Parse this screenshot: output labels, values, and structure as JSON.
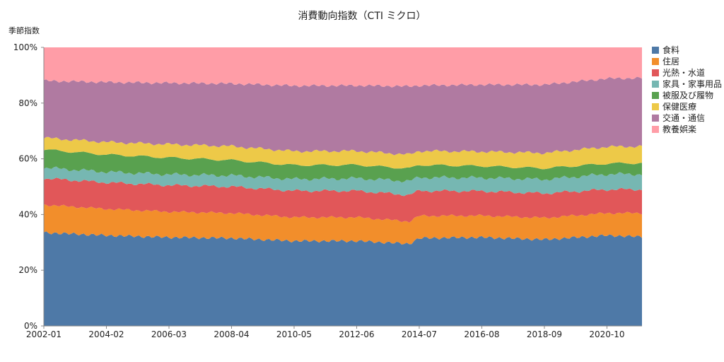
{
  "chart_data": {
    "type": "area",
    "stacked": true,
    "normalized": true,
    "title": "消費動向指数（CTI ミクロ）",
    "ylabel": "季節指数",
    "xlabel": "",
    "ylim": [
      0,
      100
    ],
    "y_ticks": [
      "0%",
      "20%",
      "40%",
      "60%",
      "80%",
      "100%"
    ],
    "x_ticks": [
      "2002-01",
      "2004-02",
      "2006-03",
      "2008-04",
      "2010-05",
      "2012-06",
      "2014-07",
      "2016-08",
      "2018-09",
      "2020-10"
    ],
    "x_range": [
      "2002-01",
      "2021-12"
    ],
    "legend_position": "right",
    "series": [
      {
        "name": "食料",
        "color": "#4e79a7",
        "x": [
          "2002-01",
          "2004-02",
          "2006-03",
          "2008-04",
          "2010-05",
          "2012-06",
          "2014-03",
          "2014-07",
          "2016-08",
          "2018-09",
          "2020-10",
          "2021-12"
        ],
        "values": [
          33.5,
          32.5,
          31.8,
          31.5,
          30.5,
          30.5,
          29.5,
          31.5,
          31.8,
          31.0,
          32.5,
          32.0
        ]
      },
      {
        "name": "住居",
        "color": "#f28e2b",
        "x": [
          "2002-01",
          "2004-02",
          "2006-03",
          "2008-04",
          "2010-05",
          "2012-06",
          "2014-03",
          "2014-07",
          "2016-08",
          "2018-09",
          "2020-10",
          "2021-12"
        ],
        "values": [
          10.0,
          9.5,
          9.2,
          9.0,
          8.5,
          8.5,
          8.0,
          8.0,
          7.8,
          7.8,
          8.0,
          8.5
        ]
      },
      {
        "name": "光熱・水道",
        "color": "#e15759",
        "x": [
          "2002-01",
          "2004-02",
          "2006-03",
          "2008-04",
          "2010-05",
          "2012-06",
          "2014-03",
          "2014-07",
          "2016-08",
          "2018-09",
          "2020-10",
          "2021-12"
        ],
        "values": [
          9.5,
          9.5,
          9.5,
          9.5,
          9.5,
          9.5,
          9.5,
          9.0,
          8.8,
          8.8,
          8.5,
          8.5
        ]
      },
      {
        "name": "家具・家事用品",
        "color": "#76b7b2",
        "x": [
          "2002-01",
          "2004-02",
          "2006-03",
          "2008-04",
          "2010-05",
          "2012-06",
          "2014-03",
          "2014-07",
          "2016-08",
          "2018-09",
          "2020-10",
          "2021-12"
        ],
        "values": [
          3.8,
          3.8,
          3.9,
          4.0,
          4.2,
          4.5,
          5.0,
          4.8,
          4.8,
          5.0,
          5.5,
          5.5
        ]
      },
      {
        "name": "被服及び履物",
        "color": "#59a14f",
        "x": [
          "2002-01",
          "2004-02",
          "2006-03",
          "2008-04",
          "2010-05",
          "2012-06",
          "2014-03",
          "2014-07",
          "2016-08",
          "2018-09",
          "2020-10",
          "2021-12"
        ],
        "values": [
          6.5,
          6.2,
          6.0,
          5.5,
          5.0,
          4.8,
          4.5,
          4.5,
          4.2,
          4.0,
          3.8,
          4.0
        ]
      },
      {
        "name": "保健医療",
        "color": "#edc948",
        "x": [
          "2002-01",
          "2004-02",
          "2006-03",
          "2008-04",
          "2010-05",
          "2012-06",
          "2014-03",
          "2014-07",
          "2016-08",
          "2018-09",
          "2020-10",
          "2021-12"
        ],
        "values": [
          4.2,
          4.5,
          4.8,
          5.0,
          5.0,
          5.0,
          5.0,
          5.0,
          5.2,
          5.5,
          6.0,
          6.0
        ]
      },
      {
        "name": "交通・通信",
        "color": "#b07aa1",
        "x": [
          "2002-01",
          "2004-02",
          "2006-03",
          "2008-04",
          "2010-05",
          "2012-06",
          "2014-03",
          "2014-07",
          "2016-08",
          "2018-09",
          "2020-10",
          "2021-12"
        ],
        "values": [
          20.5,
          21.5,
          22.0,
          22.5,
          23.5,
          23.5,
          24.5,
          23.5,
          24.0,
          24.5,
          24.5,
          24.5
        ]
      },
      {
        "name": "教養娯楽",
        "color": "#ff9da7",
        "x": [
          "2002-01",
          "2004-02",
          "2006-03",
          "2008-04",
          "2010-05",
          "2012-06",
          "2014-03",
          "2014-07",
          "2016-08",
          "2018-09",
          "2020-10",
          "2021-12"
        ],
        "values": [
          12.0,
          12.5,
          12.8,
          13.0,
          13.8,
          13.7,
          14.0,
          13.7,
          13.4,
          13.4,
          11.2,
          11.0
        ]
      }
    ]
  }
}
